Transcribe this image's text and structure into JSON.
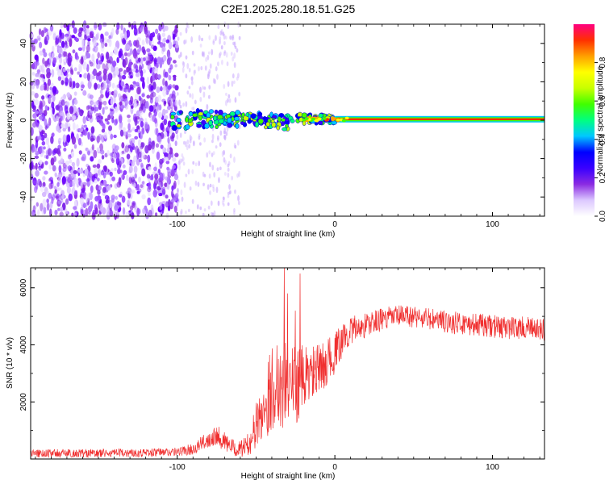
{
  "title": "C2E1.2025.280.18.51.G25",
  "chart_data": [
    {
      "type": "heatmap",
      "name": "spectrogram",
      "xlabel": "Height of straight line (km)",
      "ylabel": "Frequency (Hz)",
      "xlim": [
        -193,
        133
      ],
      "ylim": [
        -50,
        50
      ],
      "xticks": [
        -100,
        0,
        100
      ],
      "yticks": [
        -40,
        -20,
        0,
        20,
        40
      ],
      "xtick_labels": [
        "-100",
        "0",
        "100"
      ],
      "ytick_labels": [
        "-40",
        "-20",
        "0",
        "20",
        "40"
      ],
      "colorbar": {
        "label": "Normalized spectral amplitude",
        "range": [
          0.0,
          1.0
        ],
        "ticks": [
          0.0,
          0.2,
          0.4,
          0.6,
          0.8
        ],
        "tick_labels": [
          "0.0",
          "0.2",
          "0.4",
          "0.6",
          "0.8"
        ],
        "colors": [
          "#ffffff",
          "#dcc8ff",
          "#8a2be2",
          "#3a00ff",
          "#0000ff",
          "#00c8ff",
          "#00ff80",
          "#40ff00",
          "#c8ff00",
          "#ffff00",
          "#ffa000",
          "#ff3000",
          "#ff0080"
        ]
      },
      "features": {
        "noise_region_x": [
          -193,
          -100
        ],
        "sparse_region_x": [
          -100,
          -60
        ],
        "signal_band_x": [
          -105,
          133
        ],
        "signal_band_freq_hz": 0.5
      }
    },
    {
      "type": "line",
      "name": "snr",
      "xlabel": "Height of straight line (km)",
      "ylabel": "SNR (10 * v/v)",
      "xlim": [
        -193,
        133
      ],
      "ylim": [
        0,
        6700
      ],
      "xticks": [
        -100,
        0,
        100
      ],
      "yticks": [
        2000,
        4000,
        6000
      ],
      "xtick_labels": [
        "-100",
        "0",
        "100"
      ],
      "ytick_labels": [
        "2000",
        "4000",
        "6000"
      ],
      "color": "#f03030",
      "envelope": {
        "x": [
          -193,
          -150,
          -120,
          -100,
          -90,
          -80,
          -75,
          -70,
          -62,
          -55,
          -45,
          -40,
          -35,
          -30,
          -25,
          -20,
          -15,
          -10,
          -5,
          0,
          5,
          10,
          20,
          30,
          40,
          50,
          60,
          70,
          80,
          90,
          100,
          110,
          120,
          133
        ],
        "mean": [
          200,
          200,
          220,
          250,
          350,
          700,
          900,
          600,
          300,
          500,
          1800,
          2500,
          2800,
          2500,
          2600,
          2800,
          3000,
          3100,
          3400,
          3700,
          4200,
          4500,
          4700,
          4900,
          5000,
          5000,
          4900,
          4800,
          4750,
          4700,
          4650,
          4600,
          4600,
          4500
        ],
        "amp": [
          150,
          150,
          150,
          150,
          200,
          300,
          400,
          350,
          250,
          400,
          1200,
          1500,
          1800,
          1500,
          1400,
          1200,
          1000,
          900,
          800,
          700,
          600,
          500,
          450,
          400,
          400,
          400,
          400,
          400,
          400,
          400,
          400,
          400,
          400,
          400
        ]
      },
      "spikes": [
        {
          "x": -32,
          "y": 6700
        },
        {
          "x": -30,
          "y": 5800
        },
        {
          "x": -22,
          "y": 6500
        },
        {
          "x": -25,
          "y": 5200
        }
      ]
    }
  ]
}
